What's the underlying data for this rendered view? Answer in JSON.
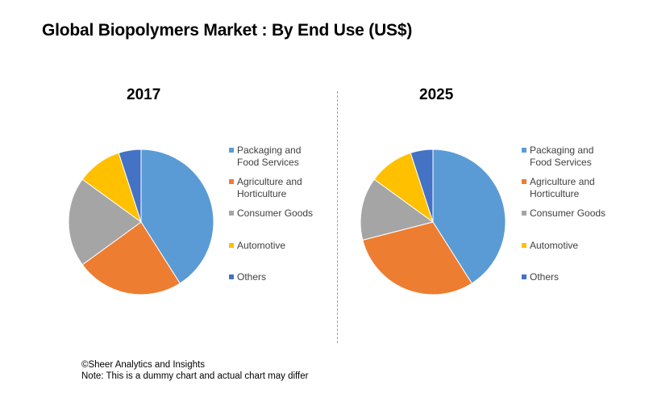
{
  "title": "Global Biopolymers Market : By End Use (US$)",
  "colors": {
    "Packaging and Food Services": "#5b9bd5",
    "Agriculture and Horticulture": "#ed7d31",
    "Consumer Goods": "#a5a5a5",
    "Automotive": "#ffc000",
    "Others": "#4472c4",
    "divider": "#7fa8c9"
  },
  "chart_data": [
    {
      "type": "pie",
      "title": "2017",
      "categories": [
        "Packaging and Food Services",
        "Agriculture and Horticulture",
        "Consumer Goods",
        "Automotive",
        "Others"
      ],
      "values": [
        41,
        24,
        20,
        10,
        5
      ],
      "legend_position": "right"
    },
    {
      "type": "pie",
      "title": "2025",
      "categories": [
        "Packaging and Food Services",
        "Agriculture and Horticulture",
        "Consumer Goods",
        "Automotive",
        "Others"
      ],
      "values": [
        41,
        30,
        14,
        10,
        5
      ],
      "legend_position": "right"
    }
  ],
  "legend": [
    "Packaging and\nFood Services",
    "Agriculture and\nHorticulture",
    "Consumer Goods",
    "Automotive",
    "Others"
  ],
  "footer": {
    "line1": "©Sheer Analytics and Insights",
    "line2": "Note: This is a dummy chart and actual chart may differ"
  }
}
